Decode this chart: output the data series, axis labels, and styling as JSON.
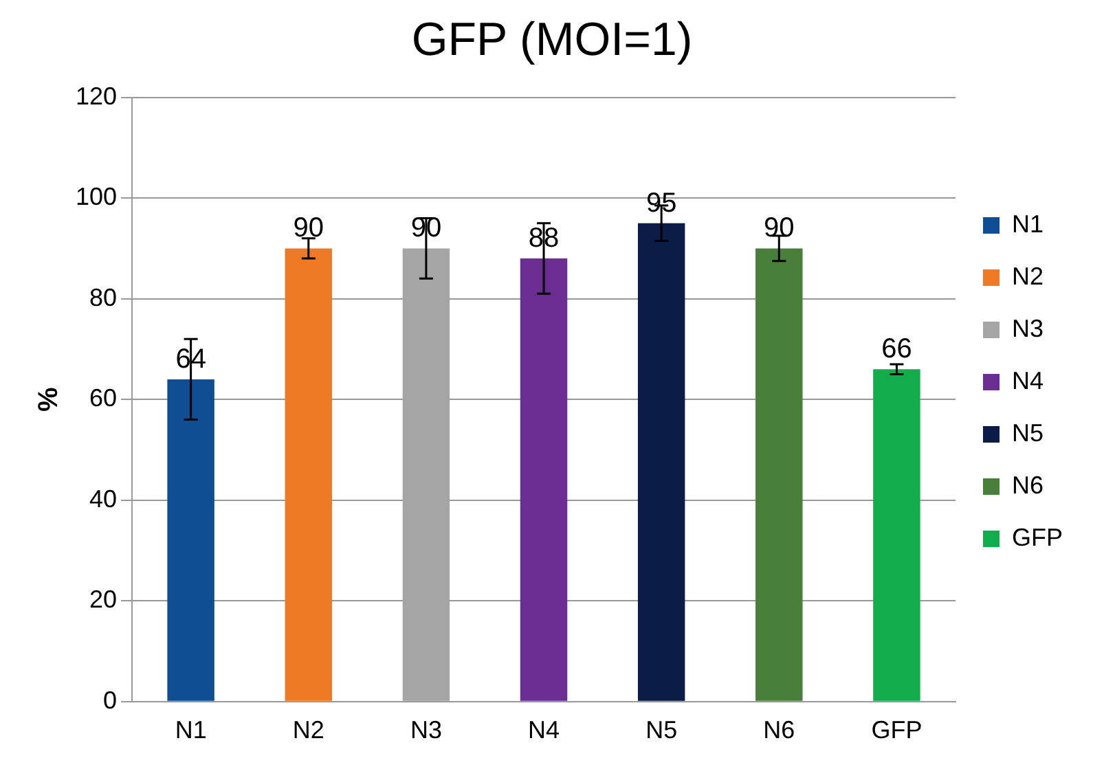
{
  "chart_data": {
    "type": "bar",
    "title": "GFP (MOI=1)",
    "ylabel": "%",
    "categories": [
      "N1",
      "N2",
      "N3",
      "N4",
      "N5",
      "N6",
      "GFP"
    ],
    "series": [
      {
        "name": "N1",
        "color": "#0f4e92",
        "values": [
          64,
          null,
          null,
          null,
          null,
          null,
          null
        ],
        "errors": [
          8,
          null,
          null,
          null,
          null,
          null,
          null
        ]
      },
      {
        "name": "N2",
        "color": "#ee7a25",
        "values": [
          null,
          90,
          null,
          null,
          null,
          null,
          null
        ],
        "errors": [
          null,
          2,
          null,
          null,
          null,
          null,
          null
        ]
      },
      {
        "name": "N3",
        "color": "#a5a5a5",
        "values": [
          null,
          null,
          90,
          null,
          null,
          null,
          null
        ],
        "errors": [
          null,
          null,
          6,
          null,
          null,
          null,
          null
        ]
      },
      {
        "name": "N4",
        "color": "#6a2d91",
        "values": [
          null,
          null,
          null,
          88,
          null,
          null,
          null
        ],
        "errors": [
          null,
          null,
          null,
          7,
          null,
          null,
          null
        ]
      },
      {
        "name": "N5",
        "color": "#0b1c47",
        "values": [
          null,
          null,
          null,
          null,
          95,
          null,
          null
        ],
        "errors": [
          null,
          null,
          null,
          null,
          3.5,
          null,
          null
        ]
      },
      {
        "name": "N6",
        "color": "#487f3b",
        "values": [
          null,
          null,
          null,
          null,
          null,
          90,
          null
        ],
        "errors": [
          null,
          null,
          null,
          null,
          null,
          2.5,
          null
        ]
      },
      {
        "name": "GFP",
        "color": "#12ac4c",
        "values": [
          null,
          null,
          null,
          null,
          null,
          null,
          66
        ],
        "errors": [
          null,
          null,
          null,
          null,
          null,
          null,
          1
        ]
      }
    ],
    "ylim": [
      0,
      120
    ],
    "yticks": [
      0,
      20,
      40,
      60,
      80,
      100,
      120
    ],
    "grid": "y",
    "legend": "right",
    "data_labels": true
  }
}
